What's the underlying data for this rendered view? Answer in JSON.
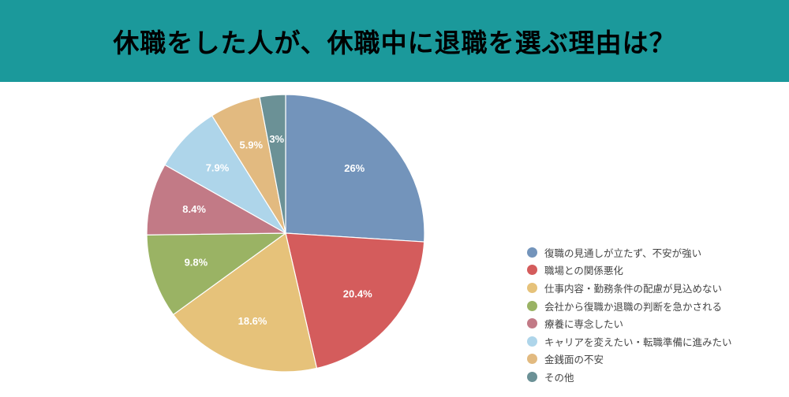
{
  "header": {
    "title": "休職をした人が、休職中に退職を選ぶ理由は？",
    "background": "#1b999b"
  },
  "chart_data": {
    "type": "pie",
    "title": "休職をした人が、休職中に退職を選ぶ理由は？",
    "start_angle": "12 o'clock, clockwise",
    "legend_position": "right",
    "categories": [
      "復職の見通しが立たず、不安が強い",
      "職場との関係悪化",
      "仕事内容・勤務条件の配慮が見込めない",
      "会社から復職か退職の判断を急かされる",
      "療養に専念したい",
      "キャリアを変えたい・転職準備に進みたい",
      "金銭面の不安",
      "その他"
    ],
    "values": [
      26,
      20.4,
      18.6,
      9.8,
      8.4,
      7.9,
      5.9,
      3
    ],
    "labels": [
      "26%",
      "20.4%",
      "18.6%",
      "9.8%",
      "8.4%",
      "7.9%",
      "5.9%",
      "3%"
    ],
    "colors": [
      "#7394bb",
      "#d45c5c",
      "#e6c27a",
      "#9ab364",
      "#c27a86",
      "#aed5ea",
      "#e2ba80",
      "#6b9196"
    ]
  }
}
